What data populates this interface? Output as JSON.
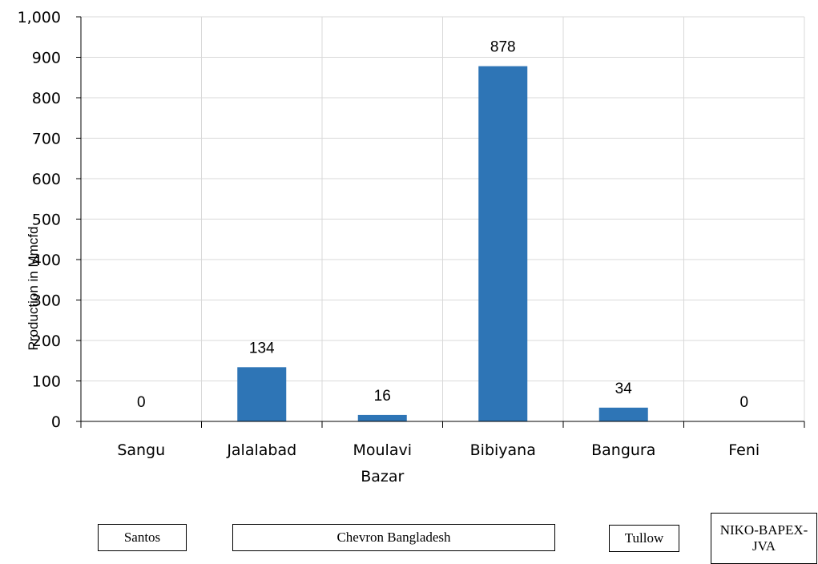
{
  "chart_data": {
    "type": "bar",
    "categories": [
      "Sangu",
      "Jalalabad",
      "Moulavi Bazar",
      "Bibiyana",
      "Bangura",
      "Feni"
    ],
    "category_lines": [
      [
        "Sangu"
      ],
      [
        "Jalalabad"
      ],
      [
        "Moulavi",
        "Bazar"
      ],
      [
        "Bibiyana"
      ],
      [
        "Bangura"
      ],
      [
        "Feni"
      ]
    ],
    "values": [
      0,
      134,
      16,
      878,
      34,
      0
    ],
    "data_labels": [
      "0",
      "134",
      "16",
      "878",
      "34",
      "0"
    ],
    "ylabel": "Production in Mmcfd",
    "ylim": [
      0,
      1000
    ],
    "yticks": [
      0,
      100,
      200,
      300,
      400,
      500,
      600,
      700,
      800,
      900,
      1000
    ],
    "ytick_labels": [
      "0",
      "100",
      "200",
      "300",
      "400",
      "500",
      "600",
      "700",
      "800",
      "900",
      "1,000"
    ],
    "grid": true,
    "bar_color": "#2E75B6"
  },
  "companies": {
    "santos": "Santos",
    "chevron": "Chevron Bangladesh",
    "tullow": "Tullow",
    "niko": "NIKO-BAPEX-JVA"
  }
}
